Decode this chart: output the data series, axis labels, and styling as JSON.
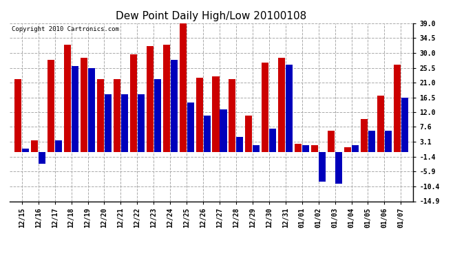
{
  "title": "Dew Point Daily High/Low 20100108",
  "copyright": "Copyright 2010 Cartronics.com",
  "categories": [
    "12/15",
    "12/16",
    "12/17",
    "12/18",
    "12/19",
    "12/20",
    "12/21",
    "12/22",
    "12/23",
    "12/24",
    "12/25",
    "12/26",
    "12/27",
    "12/28",
    "12/29",
    "12/30",
    "12/31",
    "01/01",
    "01/02",
    "01/03",
    "01/04",
    "01/05",
    "01/06",
    "01/07"
  ],
  "highs": [
    22.0,
    3.5,
    28.0,
    32.5,
    28.5,
    22.0,
    22.0,
    29.5,
    32.0,
    32.5,
    39.0,
    22.5,
    23.0,
    22.0,
    11.0,
    27.0,
    28.5,
    2.5,
    2.0,
    6.5,
    1.5,
    10.0,
    17.0,
    26.5
  ],
  "lows": [
    1.0,
    -3.5,
    3.5,
    26.0,
    25.5,
    17.5,
    17.5,
    17.5,
    22.0,
    28.0,
    15.0,
    11.0,
    13.0,
    4.5,
    2.0,
    7.0,
    26.5,
    2.0,
    -9.0,
    -9.5,
    2.0,
    6.5,
    6.5,
    16.5
  ],
  "ylim": [
    -14.9,
    39.0
  ],
  "yticks": [
    -14.9,
    -10.4,
    -5.9,
    -1.4,
    3.1,
    7.6,
    12.0,
    16.5,
    21.0,
    25.5,
    30.0,
    34.5,
    39.0
  ],
  "high_color": "#cc0000",
  "low_color": "#0000bb",
  "bg_color": "#ffffff",
  "grid_color": "#aaaaaa",
  "title_fontsize": 11,
  "tick_fontsize": 7,
  "copyright_fontsize": 6.5
}
